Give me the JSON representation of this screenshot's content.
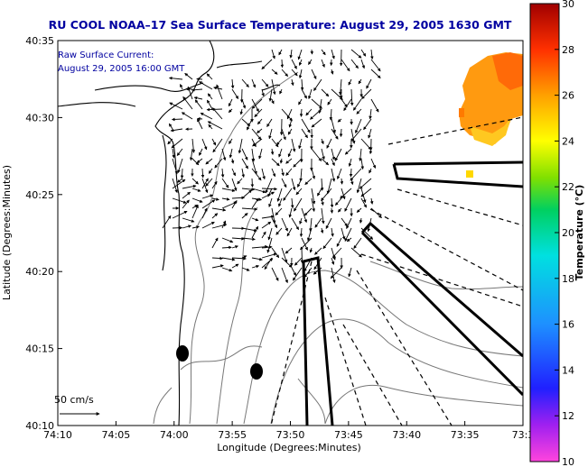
{
  "title": "RU COOL  NOAA–17  Sea Surface Temperature:  August 29, 2005 1630 GMT",
  "annotation": {
    "line1": "Raw Surface Current:",
    "line2": "August 29, 2005 16:00 GMT"
  },
  "scale_label": "50 cm/s",
  "colors": {
    "title": "#0000a0",
    "annotation": "#0000a0",
    "coast": "#000000",
    "bathymetry": "#777777"
  },
  "chart_data": {
    "type": "heatmap",
    "title": "RU COOL  NOAA–17  Sea Surface Temperature:  August 29, 2005 1630 GMT",
    "xlabel": "Longitude (Degrees:Minutes)",
    "ylabel": "Latitude (Degrees:Minutes)",
    "x_ticks": [
      "74:10",
      "74:05",
      "74:00",
      "73:55",
      "73:50",
      "73:45",
      "73:40",
      "73:35",
      "73:3"
    ],
    "y_ticks": [
      "40:10",
      "40:15",
      "40:20",
      "40:25",
      "40:30",
      "40:35"
    ],
    "x_range_minutes_west": [
      10,
      33
    ],
    "y_range_minutes_north": [
      10,
      35
    ],
    "colorbar": {
      "label": "Temperature (°C)",
      "min": 10,
      "max": 30,
      "ticks": [
        "10",
        "12",
        "14",
        "16",
        "18",
        "20",
        "22",
        "24",
        "26",
        "28",
        "30"
      ]
    },
    "markers": [
      {
        "name": "buoy-west",
        "lon_min": 59,
        "lat_min": 14.6
      },
      {
        "name": "buoy-east",
        "lon_min": 52.5,
        "lat_min": 13.5
      }
    ]
  }
}
